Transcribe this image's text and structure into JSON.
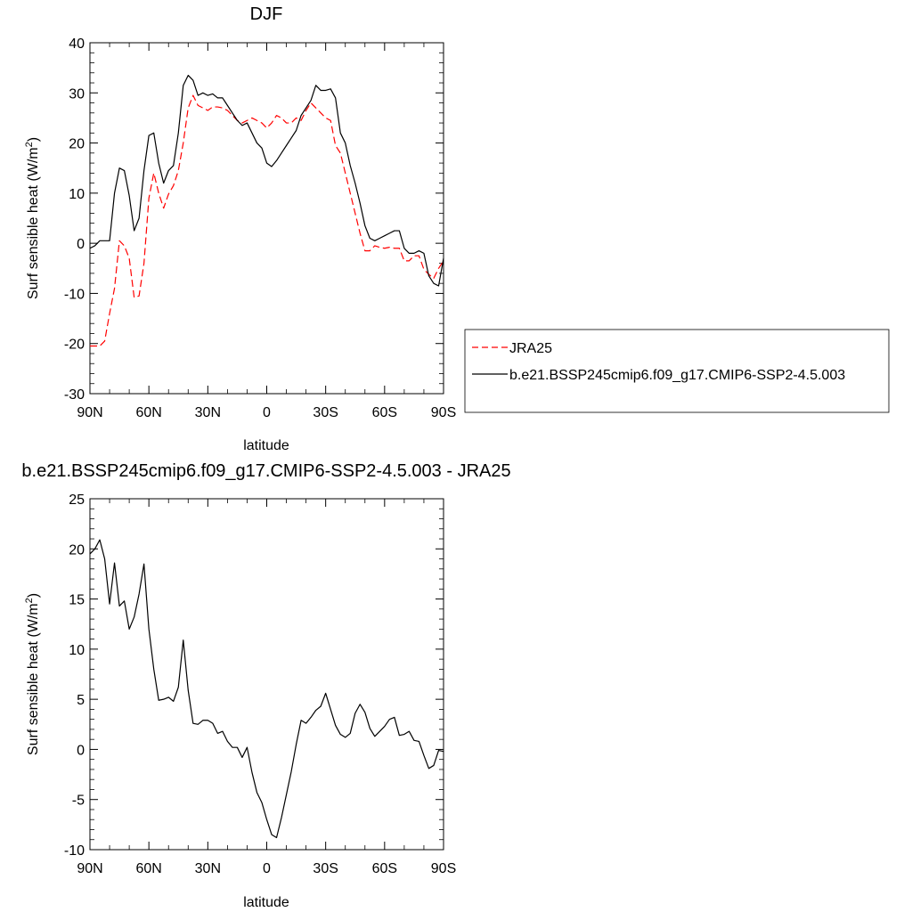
{
  "chart_data": [
    {
      "type": "line",
      "title": "DJF",
      "xlabel": "latitude",
      "ylabel": "Surf sensible heat (W/m²)",
      "ylabel_base": "Surf sensible heat (W/m",
      "ylabel_sup": "2",
      "ylabel_end": ")",
      "xlim": [
        90,
        -90
      ],
      "ylim": [
        -30,
        40
      ],
      "yticks": [
        -30,
        -20,
        -10,
        0,
        10,
        20,
        30,
        40
      ],
      "xticks": [
        {
          "value": 90,
          "label": "90N"
        },
        {
          "value": 60,
          "label": "60N"
        },
        {
          "value": 30,
          "label": "30N"
        },
        {
          "value": 0,
          "label": "0"
        },
        {
          "value": -30,
          "label": "30S"
        },
        {
          "value": -60,
          "label": "60S"
        },
        {
          "value": -90,
          "label": "90S"
        }
      ],
      "legend": {
        "placement": "right",
        "entries": [
          "JRA25",
          "b.e21.BSSP245cmip6.f09_g17.CMIP6-SSP2-4.5.003"
        ]
      },
      "series": [
        {
          "name": "JRA25",
          "color": "#ff0000",
          "dash": "dashed",
          "x": [
            90,
            87.5,
            85,
            82.5,
            80,
            77.5,
            75,
            72.5,
            70,
            67.5,
            65,
            62.5,
            60,
            57.5,
            55,
            52.5,
            50,
            47.5,
            45,
            42.5,
            40,
            37.5,
            35,
            32.5,
            30,
            27.5,
            25,
            22.5,
            20,
            17.5,
            15,
            12.5,
            10,
            7.5,
            5,
            2.5,
            0,
            -2.5,
            -5,
            -7.5,
            -10,
            -12.5,
            -15,
            -17.5,
            -20,
            -22.5,
            -25,
            -27.5,
            -30,
            -32.5,
            -35,
            -37.5,
            -40,
            -42.5,
            -45,
            -47.5,
            -50,
            -52.5,
            -55,
            -57.5,
            -60,
            -62.5,
            -65,
            -67.5,
            -70,
            -72.5,
            -75,
            -77.5,
            -80,
            -82.5,
            -85,
            -87.5,
            -90
          ],
          "values": [
            -20.5,
            -20.5,
            -20.5,
            -19.5,
            -14,
            -9,
            0.5,
            -0.5,
            -3,
            -10.8,
            -10.5,
            -4,
            9,
            14,
            10,
            7,
            9.8,
            11.5,
            14.5,
            20,
            27,
            29.5,
            27.5,
            27,
            26.5,
            27.2,
            27.2,
            27,
            26.5,
            25.5,
            24.5,
            24,
            24.5,
            25,
            24.5,
            24,
            23,
            24,
            25.5,
            25,
            24,
            24,
            25,
            24.5,
            26.5,
            28,
            27,
            26,
            25,
            24.5,
            19.5,
            18,
            14,
            10,
            6,
            2,
            -1.5,
            -1.5,
            -0.5,
            -0.8,
            -1,
            -0.8,
            -1,
            -1,
            -3.5,
            -3.5,
            -2.5,
            -2.5,
            -5.2,
            -6.2,
            -7,
            -5,
            -3.5
          ]
        },
        {
          "name": "b.e21.BSSP245cmip6.f09_g17.CMIP6-SSP2-4.5.003",
          "color": "#000000",
          "dash": "solid",
          "x": [
            90,
            87.5,
            85,
            82.5,
            80,
            77.5,
            75,
            72.5,
            70,
            67.5,
            65,
            62.5,
            60,
            57.5,
            55,
            52.5,
            50,
            47.5,
            45,
            42.5,
            40,
            37.5,
            35,
            32.5,
            30,
            27.5,
            25,
            22.5,
            20,
            17.5,
            15,
            12.5,
            10,
            7.5,
            5,
            2.5,
            0,
            -2.5,
            -5,
            -7.5,
            -10,
            -12.5,
            -15,
            -17.5,
            -20,
            -22.5,
            -25,
            -27.5,
            -30,
            -32.5,
            -35,
            -37.5,
            -40,
            -42.5,
            -45,
            -47.5,
            -50,
            -52.5,
            -55,
            -57.5,
            -60,
            -62.5,
            -65,
            -67.5,
            -70,
            -72.5,
            -75,
            -77.5,
            -80,
            -82.5,
            -85,
            -87.5,
            -90
          ],
          "values": [
            -1,
            -0.5,
            0.5,
            0.5,
            0.5,
            10,
            15,
            14.5,
            9.5,
            2.5,
            5,
            14.5,
            21.5,
            22,
            16,
            12,
            14.5,
            15.5,
            22,
            31.5,
            33.5,
            32.5,
            29.5,
            30,
            29.5,
            29.8,
            29,
            29,
            27.5,
            26,
            24.5,
            23.5,
            24,
            22,
            20,
            19,
            16,
            15.3,
            16.5,
            18,
            19.5,
            21,
            22.5,
            25.5,
            27,
            28.5,
            31.5,
            30.5,
            30.5,
            30.8,
            29,
            22,
            20,
            15.5,
            12,
            8,
            3.5,
            1,
            0.5,
            1,
            1.5,
            2,
            2.5,
            2.5,
            -1,
            -2,
            -2,
            -1.5,
            -2,
            -6.5,
            -8,
            -8.5,
            -3
          ]
        }
      ]
    },
    {
      "type": "line",
      "title": "b.e21.BSSP245cmip6.f09_g17.CMIP6-SSP2-4.5.003 - JRA25",
      "xlabel": "latitude",
      "ylabel": "Surf sensible heat (W/m²)",
      "ylabel_base": "Surf sensible heat (W/m",
      "ylabel_sup": "2",
      "ylabel_end": ")",
      "xlim": [
        90,
        -90
      ],
      "ylim": [
        -10,
        25
      ],
      "yticks": [
        -10,
        -5,
        0,
        5,
        10,
        15,
        20,
        25
      ],
      "xticks": [
        {
          "value": 90,
          "label": "90N"
        },
        {
          "value": 60,
          "label": "60N"
        },
        {
          "value": 30,
          "label": "30N"
        },
        {
          "value": 0,
          "label": "0"
        },
        {
          "value": -30,
          "label": "30S"
        },
        {
          "value": -60,
          "label": "60S"
        },
        {
          "value": -90,
          "label": "90S"
        }
      ],
      "series": [
        {
          "color": "#000000",
          "dash": "solid",
          "x": [
            90,
            87.5,
            85,
            82.5,
            80,
            77.5,
            75,
            72.5,
            70,
            67.5,
            65,
            62.5,
            60,
            57.5,
            55,
            52.5,
            50,
            47.5,
            45,
            42.5,
            40,
            37.5,
            35,
            32.5,
            30,
            27.5,
            25,
            22.5,
            20,
            17.5,
            15,
            12.5,
            10,
            7.5,
            5,
            2.5,
            0,
            -2.5,
            -5,
            -7.5,
            -10,
            -12.5,
            -15,
            -17.5,
            -20,
            -22.5,
            -25,
            -27.5,
            -30,
            -32.5,
            -35,
            -37.5,
            -40,
            -42.5,
            -45,
            -47.5,
            -50,
            -52.5,
            -55,
            -57.5,
            -60,
            -62.5,
            -65,
            -67.5,
            -70,
            -72.5,
            -75,
            -77.5,
            -80,
            -82.5,
            -85,
            -87.5,
            -90
          ],
          "values": [
            19.5,
            20,
            20.9,
            19,
            14.5,
            18.6,
            14.3,
            14.8,
            12,
            13.2,
            15.5,
            18.5,
            12,
            8,
            4.9,
            5,
            5.2,
            4.8,
            6.2,
            10.9,
            5.9,
            2.6,
            2.5,
            2.9,
            2.9,
            2.6,
            1.6,
            1.8,
            0.8,
            0.2,
            0.2,
            -0.8,
            0.2,
            -2.3,
            -4.3,
            -5.3,
            -7,
            -8.5,
            -8.8,
            -6.8,
            -4.5,
            -2.2,
            0.5,
            2.9,
            2.6,
            3.2,
            3.9,
            4.3,
            5.6,
            4,
            2.4,
            1.5,
            1.2,
            1.6,
            3.6,
            4.5,
            3.7,
            2.1,
            1.3,
            1.8,
            2.3,
            3,
            3.2,
            1.4,
            1.5,
            1.8,
            0.9,
            0.8,
            -0.6,
            -1.9,
            -1.6,
            -0.1,
            -0.2
          ]
        }
      ]
    }
  ]
}
